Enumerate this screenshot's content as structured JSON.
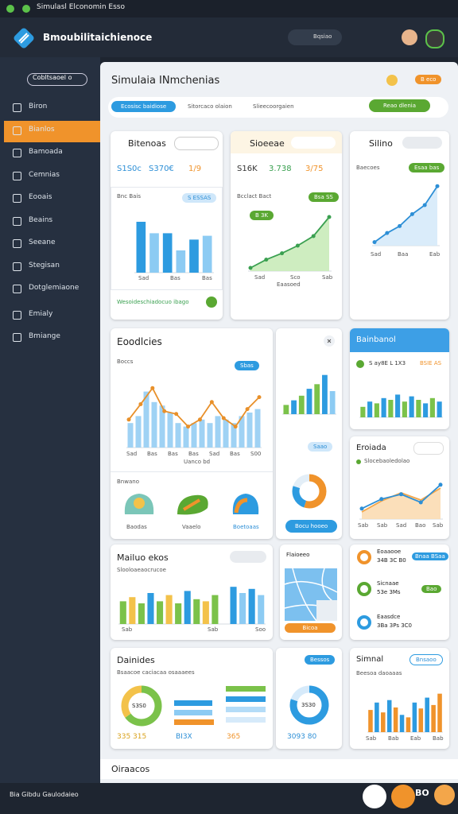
{
  "status_bar": {
    "title": "Simulasl Elconomin Esso"
  },
  "header": {
    "app_name": "Bmoubilitaichienoce",
    "search": "Bqsiao"
  },
  "sidebar": {
    "primary": "Cobltsaoel o",
    "items": [
      "Biron",
      "Bianlos",
      "Bamoada",
      "Cemnias",
      "Eooais",
      "Beains",
      "Seeane",
      "Stegisan",
      "Dotglemiaone",
      "Emialy",
      "Bmiange"
    ],
    "footer": "Bia Gibdu Gaulodaieo"
  },
  "page": {
    "title": "Simulaia INmchenias",
    "action": "B eco"
  },
  "tabs": {
    "primary": "Ecosisc baidiose",
    "items": [
      "Sitorcaco olaion",
      "Slieecoorgaien"
    ],
    "cta": "Reao dlenia"
  },
  "cards": [
    {
      "title": "Bitenoas",
      "stats": [
        "S1S0c",
        "S370€",
        "1/9"
      ],
      "chart_title": "Bnc Bais",
      "badge": "S ESSAS",
      "chart": {
        "ylim": [
          0,
          100
        ],
        "series": [
          {
            "type": "bar",
            "values": [
              80,
              62,
              62,
              35,
              52,
              58
            ],
            "colors": [
              "#2d9be0",
              "#8ccbf3",
              "#2d9be0",
              "#8ccbf3",
              "#2d9be0",
              "#8ccbf3"
            ]
          }
        ]
      },
      "x_labels": [
        "Sad",
        "Bas",
        "Bas"
      ],
      "footer": "Wesoideschiadocuo ibago"
    },
    {
      "title": "Sioeeae",
      "stats": [
        "S16K",
        "3.738",
        "3/75"
      ],
      "chart_title": "Bcclact Bact",
      "badge": "Bsa SS",
      "tag": "B 3K",
      "chart": {
        "ylim": [
          0,
          100
        ],
        "series": [
          {
            "type": "line",
            "values": [
              5,
              18,
              28,
              40,
              55,
              85
            ],
            "color": "#3aa050",
            "area": "#c9ebb9",
            "dots": true
          }
        ]
      },
      "x_labels": [
        "Sad",
        "Sco",
        "Sab"
      ],
      "footer": "Eaasoed"
    },
    {
      "title": "Silino",
      "chart_title": "Baecoes",
      "badge": "Esaa bas",
      "chart": {
        "ylim": [
          0,
          100
        ],
        "series": [
          {
            "type": "line",
            "values": [
              5,
              18,
              28,
              45,
              58,
              85
            ],
            "color": "#2d8fd6",
            "area": "#d6eafa",
            "dots": true
          }
        ]
      },
      "x_labels": [
        "Sad",
        "Baa",
        "Eab"
      ]
    },
    {
      "title": "Eoodlcies",
      "subtitle": "Boccs",
      "badge": "Sbas",
      "chart": {
        "ylim": [
          0,
          100
        ],
        "series": [
          {
            "type": "bar",
            "values": [
              35,
              45,
              80,
              65,
              60,
              50,
              35,
              30,
              35,
              40,
              35,
              45,
              40,
              35,
              45,
              50,
              55
            ],
            "color": "#9fd2f4"
          },
          {
            "type": "line",
            "values": [
              40,
              62,
              85,
              52,
              48,
              30,
              40,
              65,
              42,
              30,
              55,
              72
            ],
            "color": "#e8902a",
            "dots": true
          }
        ]
      },
      "x_labels": [
        "Sad",
        "Bas",
        "Bas",
        "Bas",
        "Sad",
        "Bas",
        "S00"
      ],
      "caption": "Uanco bd",
      "section": "Bnwano",
      "icons": [
        "Baodas",
        "Vaaelo",
        "Boetoaas"
      ]
    },
    {
      "badge": "Saao",
      "chart": {
        "ylim": [
          0,
          100
        ],
        "series": [
          {
            "type": "bar",
            "values": [
              20,
              30,
              40,
              55,
              65,
              85,
              50
            ],
            "colors": [
              "#7bc24a",
              "#2d9be0",
              "#7bc24a",
              "#2d9be0",
              "#7bc24a",
              "#2d9be0",
              "#8ccbf3"
            ]
          }
        ]
      },
      "donut": {
        "type": "donut",
        "values": [
          55,
          25,
          20
        ],
        "colors": [
          "#f0932b",
          "#2d9be0",
          "#e3eef7"
        ]
      },
      "button": "Bocu hooeo"
    },
    {
      "title": "Bainbanol",
      "stat": "S ay8E L 1X3",
      "stat2": "BSIE AS",
      "chart": {
        "ylim": [
          0,
          100
        ],
        "series": [
          {
            "type": "bar",
            "values": [
              30,
              45,
              40,
              55,
              50,
              65,
              45,
              60,
              50,
              40,
              55,
              45
            ],
            "colors": [
              "#7bc24a",
              "#2d9be0",
              "#7bc24a",
              "#2d9be0",
              "#7bc24a",
              "#2d9be0",
              "#7bc24a",
              "#2d9be0",
              "#7bc24a",
              "#2d9be0",
              "#7bc24a",
              "#2d9be0"
            ]
          }
        ]
      }
    },
    {
      "title": "Eroiada",
      "legend": "Slocebaoledolao",
      "chart": {
        "ylim": [
          0,
          100
        ],
        "series": [
          {
            "type": "line",
            "values": [
              15,
              38,
              55,
              40,
              65
            ],
            "color": "#f3a64a",
            "area": "#fbdcb3"
          },
          {
            "type": "line",
            "values": [
              22,
              42,
              52,
              35,
              72
            ],
            "color": "#2d8fd6",
            "dots": true
          }
        ]
      },
      "x_labels": [
        "Sab",
        "Sab",
        "Sad",
        "Bao",
        "Sab"
      ]
    },
    {
      "title": "Mailuo ekos",
      "subtitle": "Slooloaeaocrucoe",
      "chart": {
        "ylim": [
          0,
          100
        ],
        "series": [
          {
            "type": "bar",
            "values": [
              55,
              65,
              50,
              75,
              55,
              70,
              50,
              80,
              60,
              55,
              70,
              0,
              90,
              75,
              85,
              70
            ],
            "colors": [
              "#7bc24a",
              "#f3c24a",
              "#7bc24a",
              "#2d9be0",
              "#7bc24a",
              "#f3c24a",
              "#7bc24a",
              "#2d9be0",
              "#7bc24a",
              "#f3c24a",
              "#7bc24a",
              "#ffffff",
              "#2d9be0",
              "#8ccbf3",
              "#2d9be0",
              "#8ccbf3"
            ]
          }
        ]
      },
      "x_labels": [
        "Sab",
        "Sab",
        "Soo"
      ]
    },
    {
      "title": "Flaioeeo",
      "button": "Bicoa"
    },
    {
      "items": [
        {
          "title": "Eoaaooe",
          "value": "34B 3C B0",
          "badge": "Bnaa BSaa"
        },
        {
          "title": "Sicnaae",
          "value": "53e 3Ms",
          "badge": "Bao"
        },
        {
          "title": "Eaasdce",
          "value": "3Ba 3Ps 3C0"
        }
      ]
    },
    {
      "title": "Dainides",
      "subtitle": "Bsaacoe caciacaa osaaaees",
      "donut": {
        "type": "donut",
        "values": [
          65,
          35
        ],
        "colors": [
          "#7bc24a",
          "#f3c24a"
        ]
      },
      "donut_label": "S3S0",
      "values_text": [
        "335 315",
        "BI3X",
        "365"
      ]
    },
    {
      "badge": "Bessos",
      "donut": {
        "type": "donut",
        "values": [
          80,
          20
        ],
        "colors": [
          "#2d9be0",
          "#d6eafa"
        ]
      },
      "donut_label": "3S30",
      "value": "3093 80"
    },
    {
      "title": "Simnal",
      "badge": "Bnsaoo",
      "subtitle": "Beesoa daoaaas",
      "chart": {
        "ylim": [
          0,
          100
        ],
        "series": [
          {
            "type": "bar",
            "values": [
              45,
              60,
              40,
              65,
              50,
              35,
              30,
              60,
              48,
              70,
              55,
              78
            ],
            "colors": [
              "#f0932b",
              "#2d9be0",
              "#f0932b",
              "#2d9be0",
              "#f0932b",
              "#2d9be0",
              "#f0932b",
              "#2d9be0",
              "#f0932b",
              "#2d9be0",
              "#f0932b",
              "#f0932b"
            ]
          }
        ]
      },
      "x_labels": [
        "Sab",
        "Bab",
        "Eab",
        "Bab"
      ]
    }
  ],
  "footer": {
    "title": "Oiraacos",
    "badge": "BO"
  }
}
